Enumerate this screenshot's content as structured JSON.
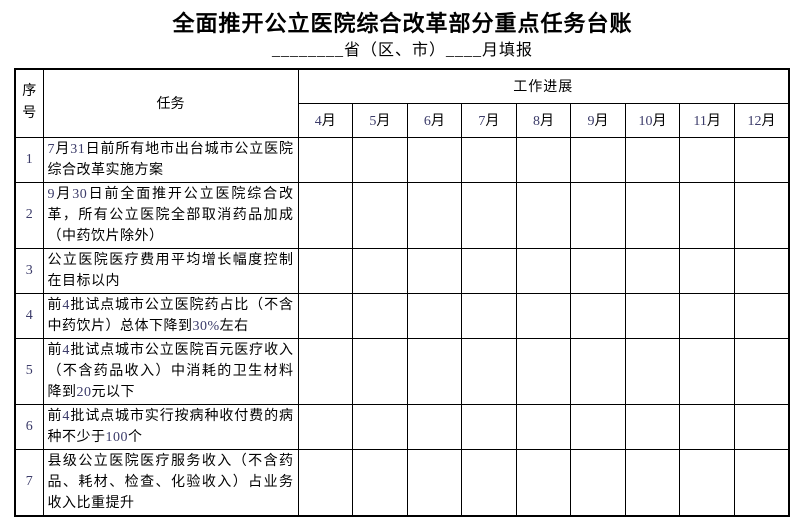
{
  "page": {
    "title": "全面推开公立医院综合改革部分重点任务台账",
    "subtitle": "________省（区、市）____月填报"
  },
  "table": {
    "headers": {
      "index": "序号",
      "task": "任务",
      "progress": "工作进展",
      "months": [
        "4月",
        "5月",
        "6月",
        "7月",
        "8月",
        "9月",
        "10月",
        "11月",
        "12月"
      ]
    },
    "rows": [
      {
        "index": "1",
        "task": "7月31日前所有地市出台城市公立医院综合改革实施方案"
      },
      {
        "index": "2",
        "task": "9月30日前全面推开公立医院综合改革，所有公立医院全部取消药品加成（中药饮片除外）"
      },
      {
        "index": "3",
        "task": "公立医院医疗费用平均增长幅度控制在目标以内"
      },
      {
        "index": "4",
        "task": "前4批试点城市公立医院药占比（不含中药饮片）总体下降到30%左右"
      },
      {
        "index": "5",
        "task": "前4批试点城市公立医院百元医疗收入（不含药品收入）中消耗的卫生材料降到20元以下"
      },
      {
        "index": "6",
        "task": "前4批试点城市实行按病种收付费的病种不少于100个"
      },
      {
        "index": "7",
        "task": "县级公立医院医疗服务收入（不含药品、耗材、检查、化验收入）占业务收入比重提升"
      }
    ]
  },
  "colors": {
    "text": "#000000",
    "digit_text": "#3c3c6a",
    "border": "#000000",
    "background": "#ffffff"
  }
}
